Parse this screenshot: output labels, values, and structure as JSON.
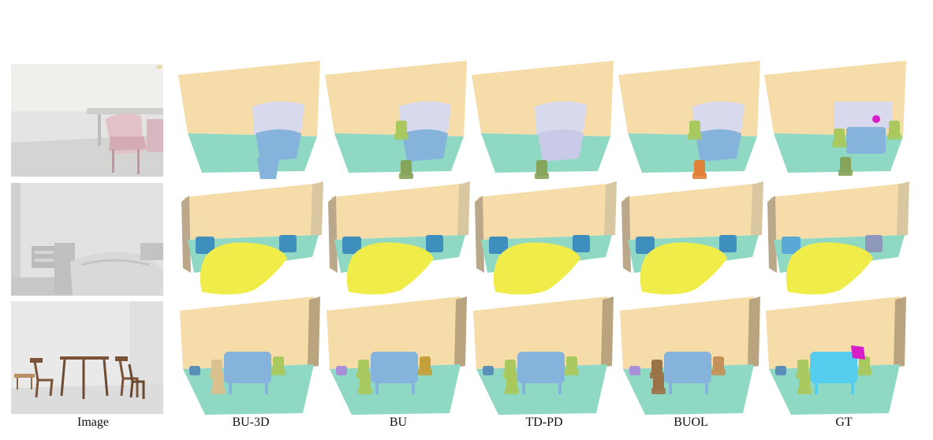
{
  "figure": {
    "columns": [
      {
        "label": "Image"
      },
      {
        "label": "BU-3D"
      },
      {
        "label": "BU"
      },
      {
        "label": "TD-PD"
      },
      {
        "label": "BUOL"
      },
      {
        "label": "GT"
      }
    ],
    "rows": [
      {
        "scene": "living-room-with-chair-and-dresser"
      },
      {
        "scene": "bedroom-with-bed-and-nightstands"
      },
      {
        "scene": "dining-room-with-table-and-chairs"
      }
    ],
    "colors": {
      "wall": "#f6dca8",
      "floor": "#8fd8c4",
      "table": "#86b3dc",
      "dresser": "#d9d9ee",
      "bed": "#f0ec4a",
      "nightstand": "#3f8fbe",
      "chair_green": "#a9c95e",
      "chair_olive": "#86a45a",
      "chair_orange": "#e0813a",
      "chair_brown": "#9a7448",
      "gt_magenta": "#d81ec8",
      "gt_cyan": "#55cdee"
    }
  }
}
